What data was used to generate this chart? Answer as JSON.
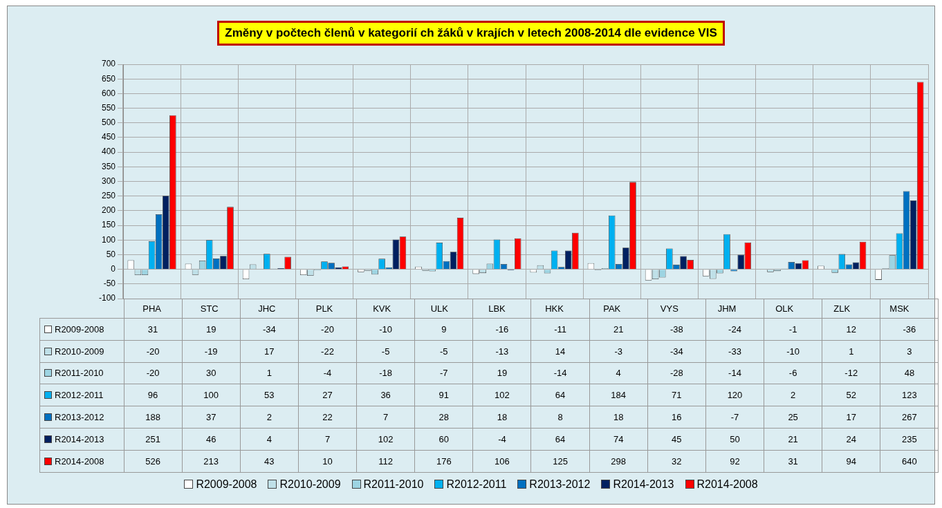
{
  "chart_data": {
    "type": "bar",
    "title": "Změny v počtech členů v kategorií ch  žáků v krajích v letech 2008-2014 dle evidence VIS",
    "categories": [
      "PHA",
      "STC",
      "JHC",
      "PLK",
      "KVK",
      "ULK",
      "LBK",
      "HKK",
      "PAK",
      "VYS",
      "JHM",
      "OLK",
      "ZLK",
      "MSK"
    ],
    "series": [
      {
        "name": "R2009-2008",
        "color": "#ffffff",
        "values": [
          31,
          19,
          -34,
          -20,
          -10,
          9,
          -16,
          -11,
          21,
          -38,
          -24,
          -1,
          12,
          -36
        ]
      },
      {
        "name": "R2010-2009",
        "color": "#bfe0e8",
        "values": [
          -20,
          -19,
          17,
          -22,
          -5,
          -5,
          -13,
          14,
          -3,
          -34,
          -33,
          -10,
          1,
          3
        ]
      },
      {
        "name": "R2011-2010",
        "color": "#9dd4e2",
        "values": [
          -20,
          30,
          1,
          -4,
          -18,
          -7,
          19,
          -14,
          4,
          -28,
          -14,
          -6,
          -12,
          48
        ]
      },
      {
        "name": "R2012-2011",
        "color": "#00b0f0",
        "values": [
          96,
          100,
          53,
          27,
          36,
          91,
          102,
          64,
          184,
          71,
          120,
          2,
          52,
          123
        ]
      },
      {
        "name": "R2013-2012",
        "color": "#0070c0",
        "values": [
          188,
          37,
          2,
          22,
          7,
          28,
          18,
          8,
          18,
          16,
          -7,
          25,
          17,
          267
        ]
      },
      {
        "name": "R2014-2013",
        "color": "#002060",
        "values": [
          251,
          46,
          4,
          7,
          102,
          60,
          -4,
          64,
          74,
          45,
          50,
          21,
          24,
          235
        ]
      },
      {
        "name": "R2014-2008",
        "color": "#ff0000",
        "values": [
          526,
          213,
          43,
          10,
          112,
          176,
          106,
          125,
          298,
          32,
          92,
          31,
          94,
          640
        ]
      }
    ],
    "ylim": [
      -100,
      700
    ],
    "yticks": [
      -100,
      -50,
      0,
      50,
      100,
      150,
      200,
      250,
      300,
      350,
      400,
      450,
      500,
      550,
      600,
      650,
      700
    ],
    "grid": true,
    "legend": "bottom",
    "data_labels": true
  }
}
